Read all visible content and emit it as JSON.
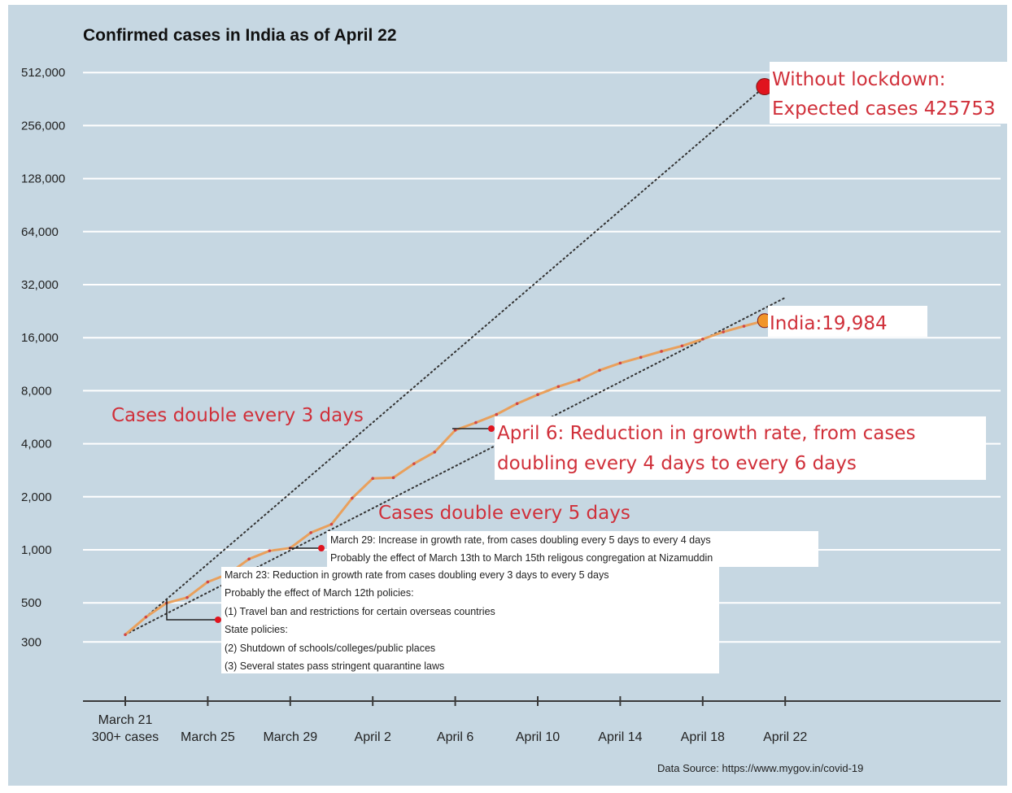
{
  "chart_data": {
    "type": "line",
    "title": "Confirmed cases in India as of April 22",
    "yscale": "log2",
    "ylim": [
      150,
      620000
    ],
    "y_ticks": [
      {
        "value": 512000,
        "label": "512,000"
      },
      {
        "value": 256000,
        "label": "256,000"
      },
      {
        "value": 128000,
        "label": "128,000"
      },
      {
        "value": 64000,
        "label": "64,000"
      },
      {
        "value": 32000,
        "label": "32,000"
      },
      {
        "value": 16000,
        "label": "16,000"
      },
      {
        "value": 8000,
        "label": "8,000"
      },
      {
        "value": 4000,
        "label": "4,000"
      },
      {
        "value": 2000,
        "label": "2,000"
      },
      {
        "value": 1000,
        "label": "1,000"
      },
      {
        "value": 500,
        "label": "500"
      },
      {
        "value": 300,
        "label": "300"
      }
    ],
    "x_ticks": [
      {
        "day": 0,
        "lines": [
          "March 21",
          "300+ cases"
        ]
      },
      {
        "day": 4,
        "lines": [
          "March 25"
        ]
      },
      {
        "day": 8,
        "lines": [
          "March 29"
        ]
      },
      {
        "day": 12,
        "lines": [
          "April 2"
        ]
      },
      {
        "day": 16,
        "lines": [
          "April 6"
        ]
      },
      {
        "day": 20,
        "lines": [
          "April 10"
        ]
      },
      {
        "day": 24,
        "lines": [
          "April 14"
        ]
      },
      {
        "day": 28,
        "lines": [
          "April 18"
        ]
      },
      {
        "day": 32,
        "lines": [
          "April 22"
        ]
      }
    ],
    "x_axis_max_day": 42,
    "series": [
      {
        "color": "#e9a05c",
        "x_days": [
          0,
          1,
          2,
          3,
          4,
          5,
          6,
          7,
          8,
          9,
          10,
          11,
          12,
          13,
          14,
          15,
          16,
          17,
          18,
          19,
          20,
          21,
          22,
          23,
          24,
          25,
          26,
          27,
          28,
          29,
          30,
          31
        ],
        "values": [
          330,
          415,
          499,
          536,
          657,
          730,
          887,
          987,
          1024,
          1251,
          1397,
          1965,
          2543,
          2567,
          3082,
          3588,
          4778,
          5274,
          5865,
          6761,
          7600,
          8446,
          9205,
          10453,
          11487,
          12380,
          13387,
          14378,
          15712,
          17265,
          18600,
          19984
        ]
      }
    ],
    "reference_lines": [
      {
        "label": "Cases double every 3 days",
        "start_day": 0,
        "start_value": 330,
        "end_day": 31,
        "end_value": 425753
      },
      {
        "label": "Cases double every 5 days",
        "start_day": 0,
        "start_value": 330,
        "end_day": 32,
        "end_value": 27000
      }
    ],
    "markers": [
      {
        "day": 31,
        "value": 425753,
        "color": "#e0141e"
      },
      {
        "day": 31,
        "value": 19984,
        "color": "#f0952a"
      }
    ],
    "annotations": {
      "without_lockdown": [
        "Without lockdown:",
        "Expected cases 425753"
      ],
      "india_label": "India:19,984",
      "double3": "Cases double every 3 days",
      "double5": "Cases double every 5 days",
      "april6": [
        "April 6: Reduction in growth rate, from cases",
        "doubling every 4 days to every 6 days"
      ],
      "march29": [
        "March 29: Increase in growth rate, from cases doubling every 5 days to every 4 days",
        "Probably the effect of March 13th to March 15th religous congregation at Nizamuddin"
      ],
      "march23": [
        "March 23: Reduction in growth rate from cases doubling every 3 days to every 5 days",
        "Probably the effect of March 12th policies:",
        "(1) Travel ban and restrictions for certain overseas countries",
        "State policies:",
        "(2) Shutdown of schools/colleges/public places",
        "(3) Several states pass stringent quarantine laws"
      ]
    },
    "source": "Data Source: https://www.mygov.in/covid-19",
    "grid": true,
    "colors": {
      "background": "#c6d7e2",
      "line": "#e9a05c",
      "points": "#d04545",
      "annotation_red": "#d0303a"
    }
  }
}
